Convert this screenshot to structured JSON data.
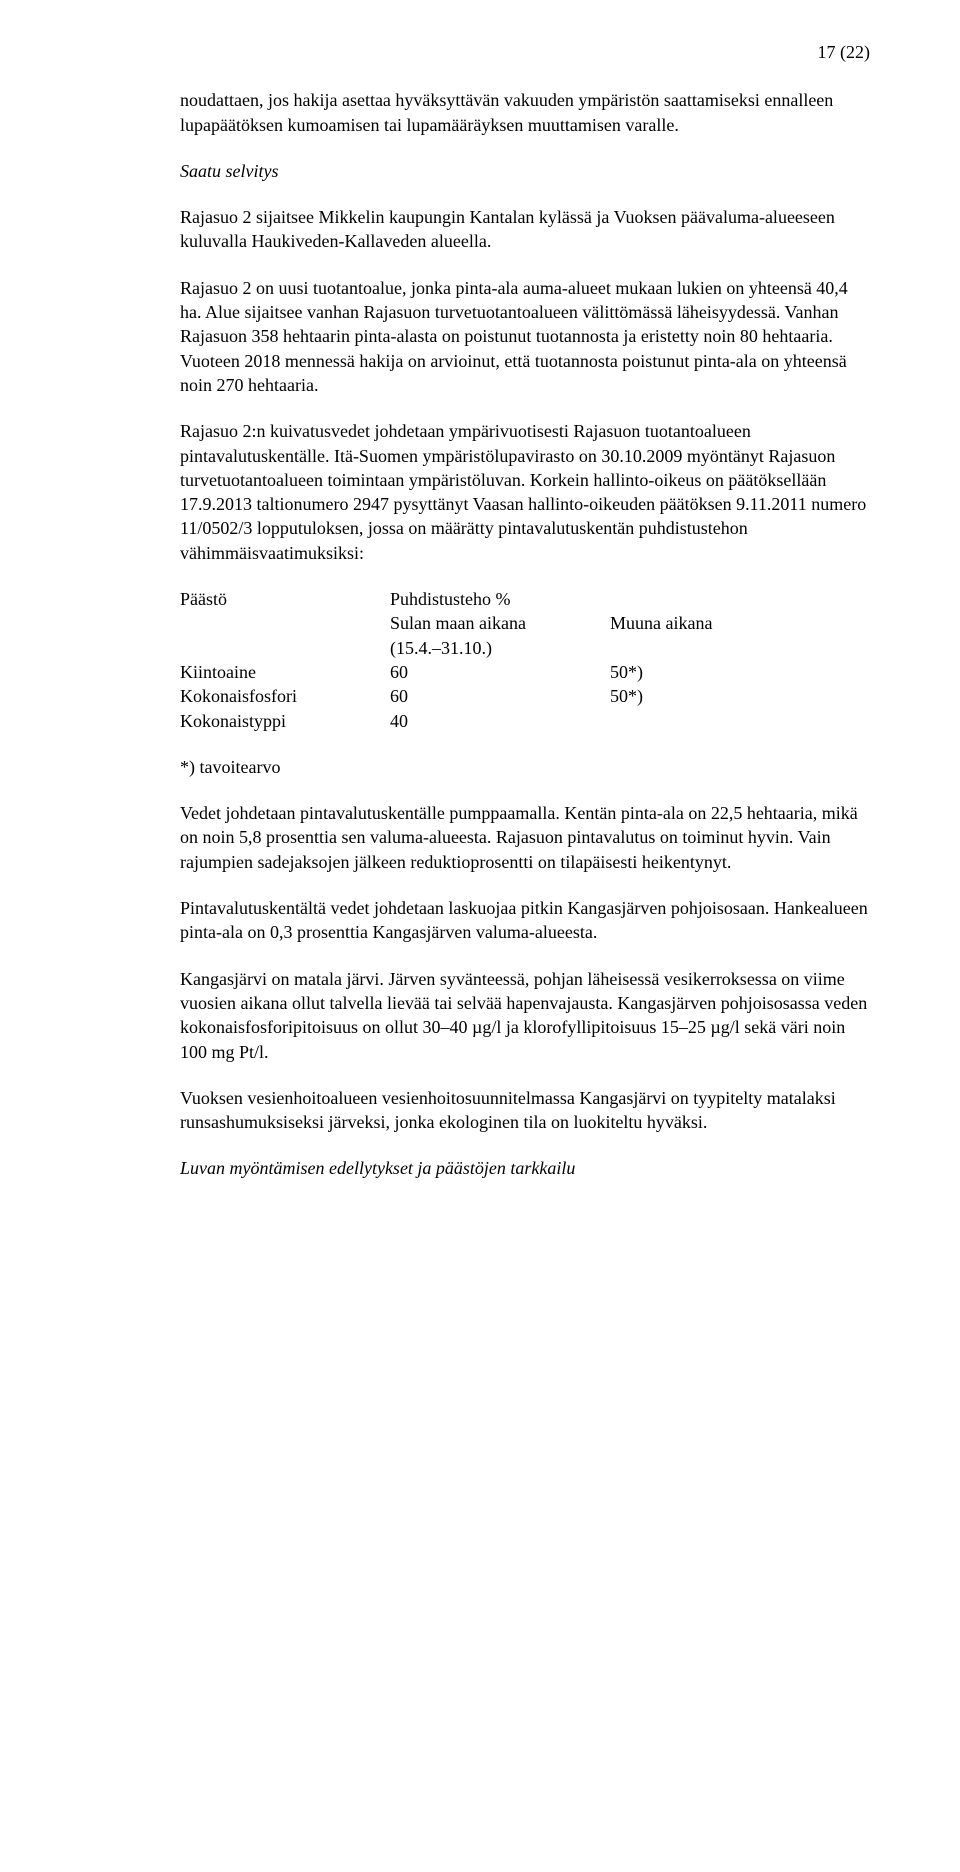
{
  "pageNumber": "17 (22)",
  "paragraphs": {
    "p1": "noudattaen, jos hakija asettaa hyväksyttävän vakuuden ympäristön saattamiseksi ennalleen lupapäätöksen kumoamisen tai lupamääräyksen muuttamisen varalle.",
    "heading1": "Saatu selvitys",
    "p2": "Rajasuo 2 sijaitsee Mikkelin kaupungin Kantalan kylässä ja Vuoksen päävaluma-alueeseen kuluvalla Haukiveden-Kallaveden alueella.",
    "p3": "Rajasuo 2 on uusi tuotantoalue, jonka pinta-ala auma-alueet mukaan lukien on yhteensä 40,4 ha. Alue sijaitsee vanhan Rajasuon turvetuotantoalueen välittömässä läheisyydessä. Vanhan Rajasuon 358 hehtaarin pinta-alasta on poistunut tuotannosta ja eristetty noin 80 hehtaaria. Vuoteen 2018 mennessä hakija on arvioinut, että tuotannosta poistunut pinta-ala on yhteensä noin 270 hehtaaria.",
    "p4": "Rajasuo 2:n kuivatusvedet johdetaan ympärivuotisesti Rajasuon tuotantoalueen pintavalutuskentälle. Itä-Suomen ympäristölupavirasto on 30.10.2009 myöntänyt Rajasuon turvetuotantoalueen toimintaan ympäristöluvan. Korkein hallinto-oikeus on  päätöksellään 17.9.2013 taltionumero 2947 pysyttänyt Vaasan hallinto-oikeuden päätöksen 9.11.2011 numero 11/0502/3 lopputuloksen, jossa on määrätty pintavalutuskentän puhdistustehon vähimmäisvaatimuksiksi:",
    "p5": "Vedet johdetaan pintavalutuskentälle pumppaamalla. Kentän pinta-ala on 22,5 hehtaaria, mikä on noin 5,8 prosenttia sen valuma-alueesta. Rajasuon pintavalutus on toiminut hyvin. Vain rajumpien sadejaksojen jälkeen reduktioprosentti on tilapäisesti heikentynyt.",
    "p6": "Pintavalutuskentältä vedet johdetaan laskuojaa pitkin Kangasjärven pohjoisosaan. Hankealueen pinta-ala on 0,3 prosenttia Kangasjärven valuma-alueesta.",
    "p7": "Kangasjärvi on matala järvi. Järven syvänteessä, pohjan läheisessä vesikerroksessa on viime vuosien aikana ollut talvella lievää tai selvää hapenvajausta. Kangasjärven pohjoisosassa veden kokonaisfosforipitoisuus on ollut 30–40 µg/l ja klorofyllipitoisuus 15–25 µg/l sekä väri noin 100 mg Pt/l.",
    "p8": "Vuoksen vesienhoitoalueen vesienhoitosuunnitelmassa Kangasjärvi on tyypitelty matalaksi runsashumuksiseksi järveksi, jonka ekologinen tila on luokiteltu hyväksi.",
    "heading2": "Luvan myöntämisen edellytykset ja päästöjen tarkkailu"
  },
  "table": {
    "header": {
      "label": "Päästö",
      "colHeader": "Puhdistusteho %",
      "sub1": "Sulan maan aikana",
      "sub2": "Muuna aikana",
      "dateRange": "(15.4.–31.10.)"
    },
    "rows": [
      {
        "label": "Kiintoaine",
        "v1": "60",
        "v2": "50*)"
      },
      {
        "label": "Kokonaisfosfori",
        "v1": "60",
        "v2": "50*)"
      },
      {
        "label": "Kokonaistyppi",
        "v1": "40",
        "v2": ""
      }
    ],
    "footnote": "*) tavoitearvo"
  }
}
